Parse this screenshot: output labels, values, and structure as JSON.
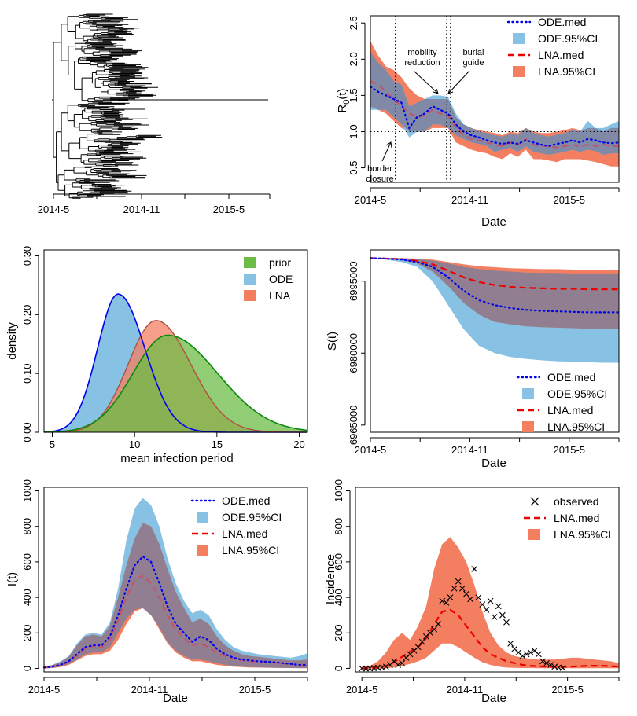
{
  "chart_data": [
    {
      "type": "tree",
      "x_ticks": [
        "2014-5",
        "2014-11",
        "2015-5"
      ]
    },
    {
      "type": "line",
      "ylabel": "R0(t)",
      "ylabel_main": "R",
      "ylabel_sub": "0",
      "ylabel_tail": "(t)",
      "xlabel": "Date",
      "x_ticks": [
        "2014-5",
        "2014-11",
        "2015-5"
      ],
      "y_ticks": [
        "0.5",
        "1.0",
        "1.5",
        "2.0",
        "2.5"
      ],
      "ylim": [
        0.3,
        2.6
      ],
      "reference_line_y": 1.0,
      "vlines": [
        1.6,
        4.9,
        5.15
      ],
      "annotations": {
        "mobility": [
          "mobility",
          "reduction"
        ],
        "burial": [
          "burial",
          "guide"
        ],
        "border": [
          "border",
          "closure"
        ]
      },
      "legend": [
        "ODE.med",
        "ODE.95%CI",
        "LNA.med",
        "LNA.95%CI"
      ],
      "x": [
        0,
        0.5,
        1,
        1.5,
        2,
        2.5,
        3,
        3.5,
        4,
        4.5,
        5,
        5.5,
        6,
        6.5,
        7,
        7.5,
        8,
        8.5,
        9,
        9.5,
        10,
        10.5,
        11,
        11.5,
        12,
        12.5,
        13,
        13.5,
        14,
        14.5,
        15,
        15.5,
        16
      ],
      "series": [
        {
          "name": "ODE.med",
          "values": [
            1.62,
            1.55,
            1.5,
            1.45,
            1.4,
            1.05,
            1.2,
            1.25,
            1.35,
            1.3,
            1.25,
            1.1,
            1.0,
            0.95,
            0.92,
            0.88,
            0.85,
            0.83,
            0.85,
            0.83,
            0.88,
            0.85,
            0.82,
            0.8,
            0.83,
            0.85,
            0.88,
            0.85,
            0.9,
            0.88,
            0.85,
            0.84,
            0.85
          ]
        },
        {
          "name": "LNA.med",
          "values": [
            1.7,
            1.65,
            1.55,
            1.45,
            1.35,
            1.25,
            1.2,
            1.22,
            1.3,
            1.25,
            1.22,
            1.05,
            0.95,
            0.9,
            0.88,
            0.85,
            0.82,
            0.8,
            0.85,
            0.82,
            0.9,
            0.82,
            0.8,
            0.8,
            0.78,
            0.8,
            0.82,
            0.8,
            0.82,
            0.8,
            0.82,
            0.8,
            0.8
          ]
        }
      ],
      "bands": [
        {
          "name": "ODE.95%CI",
          "lower": [
            1.3,
            1.3,
            1.3,
            1.2,
            1.1,
            0.92,
            1.0,
            1.0,
            1.1,
            1.1,
            1.05,
            0.95,
            0.9,
            0.85,
            0.83,
            0.8,
            0.72,
            0.75,
            0.78,
            0.72,
            0.8,
            0.72,
            0.7,
            0.68,
            0.7,
            0.72,
            0.75,
            0.72,
            0.75,
            0.73,
            0.68,
            0.7,
            0.7
          ],
          "upper": [
            2.1,
            1.95,
            1.85,
            1.7,
            1.65,
            1.35,
            1.4,
            1.45,
            1.5,
            1.5,
            1.48,
            1.25,
            1.1,
            1.05,
            1.0,
            0.98,
            0.95,
            0.93,
            0.97,
            0.95,
            1.05,
            0.98,
            0.95,
            0.93,
            0.96,
            0.98,
            1.02,
            1.0,
            1.15,
            1.05,
            1.05,
            1.1,
            1.15
          ]
        },
        {
          "name": "LNA.95%CI",
          "lower": [
            1.35,
            1.3,
            1.25,
            1.15,
            1.05,
            1.0,
            1.0,
            1.0,
            1.05,
            1.05,
            1.05,
            0.85,
            0.8,
            0.75,
            0.72,
            0.7,
            0.65,
            0.62,
            0.7,
            0.65,
            0.75,
            0.62,
            0.62,
            0.6,
            0.58,
            0.62,
            0.62,
            0.62,
            0.6,
            0.58,
            0.55,
            0.52,
            0.52
          ],
          "upper": [
            2.25,
            2.05,
            1.9,
            1.85,
            1.75,
            1.6,
            1.5,
            1.45,
            1.45,
            1.45,
            1.45,
            1.2,
            1.1,
            1.05,
            1.02,
            1.0,
            0.98,
            0.95,
            1.0,
            0.98,
            1.05,
            1.0,
            0.98,
            0.98,
            1.0,
            1.02,
            1.05,
            1.02,
            1.05,
            1.05,
            1.0,
            1.05,
            1.05
          ]
        }
      ]
    },
    {
      "type": "area",
      "ylabel": "density",
      "xlabel": "mean infection period",
      "x_ticks": [
        "5",
        "10",
        "15",
        "20"
      ],
      "y_ticks": [
        "0.00",
        "0.10",
        "0.20",
        "0.30"
      ],
      "xlim": [
        4.5,
        20.5
      ],
      "ylim": [
        0,
        0.31
      ],
      "legend": [
        "prior",
        "ODE",
        "LNA"
      ],
      "series": [
        {
          "name": "prior",
          "shape": "gamma",
          "mean": 12.0,
          "sd": 2.6,
          "peak_x": 12.0,
          "peak_y": 0.165
        },
        {
          "name": "ODE",
          "shape": "normal",
          "mean": 9.0,
          "sd": 1.8,
          "peak_x": 9.0,
          "peak_y": 0.235
        },
        {
          "name": "LNA",
          "shape": "normal",
          "mean": 11.0,
          "sd": 2.1,
          "peak_x": 11.3,
          "peak_y": 0.19
        }
      ]
    },
    {
      "type": "line",
      "ylabel": "S(t)",
      "xlabel": "Date",
      "x_ticks": [
        "2014-5",
        "2014-11",
        "2015-5"
      ],
      "y_ticks": [
        "6965000",
        "6980000",
        "6995000"
      ],
      "ylim": [
        6963500,
        7001500
      ],
      "legend": [
        "ODE.med",
        "ODE.95%CI",
        "LNA.med",
        "LNA.95%CI"
      ],
      "x": [
        0,
        1,
        2,
        3,
        4,
        5,
        6,
        7,
        8,
        9,
        10,
        11,
        12,
        13,
        14,
        15,
        16
      ],
      "series": [
        {
          "name": "ODE.med",
          "values": [
            6999800,
            6999700,
            6999500,
            6999000,
            6998000,
            6995800,
            6993000,
            6991000,
            6990000,
            6989400,
            6989000,
            6988800,
            6988700,
            6988600,
            6988500,
            6988500,
            6988500
          ]
        },
        {
          "name": "LNA.med",
          "values": [
            6999800,
            6999700,
            6999600,
            6999200,
            6998500,
            6997200,
            6995800,
            6994800,
            6994200,
            6993800,
            6993600,
            6993500,
            6993400,
            6993400,
            6993300,
            6993300,
            6993300
          ]
        }
      ],
      "bands": [
        {
          "name": "ODE.95%CI",
          "lower": [
            6999800,
            6999500,
            6999000,
            6998000,
            6995000,
            6990000,
            6985000,
            6981500,
            6980000,
            6979200,
            6978800,
            6978500,
            6978300,
            6978200,
            6978100,
            6978000,
            6978000
          ],
          "upper": [
            6999800,
            6999800,
            6999800,
            6999600,
            6999300,
            6998700,
            6998000,
            6997500,
            6997200,
            6997000,
            6996800,
            6996700,
            6996700,
            6996600,
            6996600,
            6996600,
            6996600
          ]
        },
        {
          "name": "LNA.95%CI",
          "lower": [
            6999800,
            6999700,
            6999400,
            6998700,
            6997000,
            6994000,
            6990500,
            6988000,
            6986500,
            6986000,
            6985600,
            6985400,
            6985300,
            6985200,
            6985100,
            6985100,
            6985100
          ],
          "upper": [
            6999800,
            6999800,
            6999800,
            6999700,
            6999500,
            6999000,
            6998500,
            6998100,
            6997900,
            6997700,
            6997600,
            6997500,
            6997500,
            6997400,
            6997400,
            6997400,
            6997400
          ]
        }
      ]
    },
    {
      "type": "line",
      "ylabel": "I(t)",
      "xlabel": "Date",
      "x_ticks": [
        "2014-5",
        "2014-11",
        "2015-5"
      ],
      "y_ticks": [
        "0",
        "200",
        "400",
        "600",
        "800",
        "1000"
      ],
      "ylim": [
        -20,
        1020
      ],
      "legend": [
        "ODE.med",
        "ODE.95%CI",
        "LNA.med",
        "LNA.95%CI"
      ],
      "x": [
        0,
        0.5,
        1,
        1.5,
        2,
        2.5,
        3,
        3.5,
        4,
        4.5,
        5,
        5.5,
        6,
        6.5,
        7,
        7.5,
        8,
        8.5,
        9,
        9.5,
        10,
        10.5,
        11,
        11.5,
        12,
        12.5,
        13,
        13.5,
        14,
        14.5,
        15,
        15.5,
        16
      ],
      "series": [
        {
          "name": "ODE.med",
          "values": [
            5,
            10,
            20,
            40,
            80,
            120,
            130,
            130,
            180,
            300,
            450,
            580,
            630,
            600,
            480,
            350,
            250,
            200,
            150,
            180,
            160,
            110,
            80,
            60,
            50,
            45,
            40,
            38,
            35,
            30,
            25,
            20,
            20
          ]
        },
        {
          "name": "LNA.med",
          "values": [
            5,
            8,
            18,
            35,
            70,
            110,
            125,
            120,
            160,
            270,
            400,
            500,
            520,
            480,
            400,
            300,
            220,
            170,
            130,
            140,
            120,
            90,
            70,
            55,
            45,
            40,
            38,
            35,
            32,
            28,
            22,
            18,
            15
          ]
        }
      ],
      "bands": [
        {
          "name": "ODE.95%CI",
          "lower": [
            0,
            3,
            10,
            25,
            50,
            80,
            90,
            90,
            120,
            200,
            280,
            330,
            340,
            300,
            230,
            150,
            100,
            70,
            50,
            50,
            40,
            30,
            20,
            15,
            10,
            8,
            6,
            5,
            4,
            3,
            2,
            2,
            2
          ],
          "upper": [
            10,
            20,
            40,
            70,
            140,
            190,
            200,
            190,
            260,
            450,
            720,
            900,
            960,
            920,
            800,
            620,
            480,
            380,
            310,
            330,
            300,
            220,
            160,
            120,
            100,
            90,
            80,
            75,
            70,
            65,
            60,
            70,
            85
          ]
        },
        {
          "name": "LNA.95%CI",
          "lower": [
            0,
            2,
            8,
            20,
            45,
            70,
            80,
            80,
            100,
            160,
            250,
            320,
            340,
            300,
            220,
            140,
            90,
            60,
            40,
            40,
            30,
            20,
            15,
            10,
            8,
            5,
            5,
            4,
            3,
            2,
            2,
            1,
            1
          ],
          "upper": [
            10,
            18,
            35,
            65,
            130,
            180,
            190,
            180,
            240,
            400,
            580,
            730,
            820,
            800,
            700,
            560,
            430,
            340,
            260,
            280,
            250,
            180,
            130,
            100,
            80,
            70,
            65,
            60,
            55,
            50,
            45,
            45,
            50
          ]
        }
      ]
    },
    {
      "type": "line",
      "ylabel": "Incidence",
      "xlabel": "Date",
      "x_ticks": [
        "2014-5",
        "2014-11",
        "2015-5"
      ],
      "y_ticks": [
        "0",
        "200",
        "400",
        "600",
        "800",
        "1000"
      ],
      "ylim": [
        -20,
        1020
      ],
      "legend": [
        "observed",
        "LNA.med",
        "LNA.95%CI"
      ],
      "x": [
        0,
        0.5,
        1,
        1.5,
        2,
        2.5,
        3,
        3.5,
        4,
        4.5,
        5,
        5.5,
        6,
        6.5,
        7,
        7.5,
        8,
        8.5,
        9,
        9.5,
        10,
        10.5,
        11,
        11.5,
        12,
        12.5,
        13,
        13.5,
        14,
        14.5,
        15,
        15.5,
        16
      ],
      "series": [
        {
          "name": "LNA.med",
          "values": [
            0,
            0,
            5,
            15,
            35,
            65,
            95,
            120,
            170,
            250,
            320,
            330,
            300,
            240,
            180,
            120,
            80,
            60,
            40,
            30,
            20,
            15,
            12,
            10,
            8,
            8,
            10,
            12,
            15,
            15,
            15,
            12,
            10
          ]
        }
      ],
      "bands": [
        {
          "name": "LNA.95%CI",
          "lower": [
            0,
            0,
            0,
            0,
            5,
            15,
            25,
            40,
            60,
            100,
            140,
            140,
            120,
            90,
            60,
            35,
            20,
            10,
            5,
            3,
            2,
            2,
            1,
            1,
            1,
            1,
            1,
            1,
            1,
            1,
            1,
            1,
            1
          ],
          "upper": [
            10,
            15,
            40,
            90,
            160,
            200,
            160,
            240,
            350,
            560,
            700,
            740,
            680,
            600,
            470,
            320,
            200,
            130,
            90,
            70,
            60,
            55,
            50,
            50,
            50,
            55,
            60,
            60,
            55,
            50,
            45,
            40,
            30
          ]
        }
      ],
      "observed": {
        "x": [
          0.0,
          0.25,
          0.5,
          0.75,
          1.0,
          1.25,
          1.5,
          1.75,
          2.0,
          2.25,
          2.5,
          2.75,
          3.0,
          3.25,
          3.5,
          3.75,
          4.0,
          4.25,
          4.5,
          4.75,
          5.0,
          5.25,
          5.5,
          5.75,
          6.0,
          6.25,
          6.5,
          6.75,
          7.0,
          7.25,
          7.5,
          7.75,
          8.0,
          8.25,
          8.5,
          8.75,
          9.0,
          9.25,
          9.5,
          9.75,
          10.0,
          10.25,
          10.5,
          10.75,
          11.0,
          11.25,
          11.5,
          11.75,
          12.0,
          12.25,
          12.5
        ],
        "y": [
          0,
          0,
          0,
          2,
          3,
          5,
          10,
          20,
          40,
          20,
          30,
          60,
          80,
          100,
          120,
          150,
          180,
          200,
          220,
          250,
          380,
          370,
          400,
          450,
          490,
          450,
          420,
          390,
          560,
          400,
          360,
          330,
          380,
          290,
          350,
          300,
          260,
          140,
          110,
          90,
          70,
          80,
          90,
          100,
          80,
          40,
          30,
          20,
          10,
          5,
          3
        ]
      }
    }
  ]
}
